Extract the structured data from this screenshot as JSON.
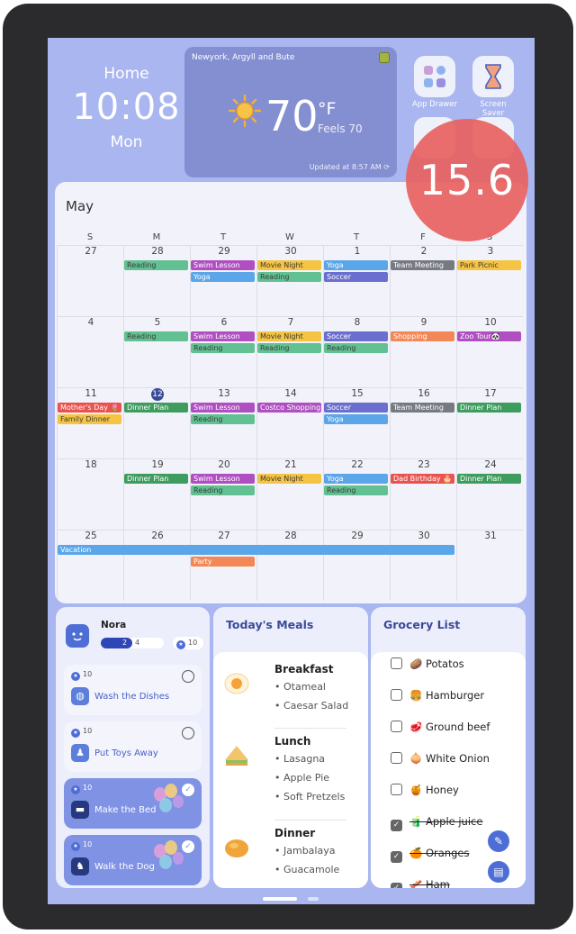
{
  "clock": {
    "label": "Home",
    "time": "10:08",
    "day": "Mon"
  },
  "weather": {
    "location": "Newyork, Argyll and Bute",
    "temperature": "70",
    "unit": "°F",
    "feels": "Feels 70",
    "updated": "Updated at 8:57 AM",
    "icon": "sun-icon"
  },
  "apps": [
    {
      "label": "App Drawer",
      "icon": "app-drawer-icon"
    },
    {
      "label": "Screen Saver",
      "icon": "hourglass-icon"
    }
  ],
  "overlay_badge": "15.6",
  "calendar": {
    "month": "May",
    "weekdays": [
      "S",
      "M",
      "T",
      "W",
      "T",
      "F",
      "S"
    ],
    "weeks": [
      [
        "27",
        "28",
        "29",
        "30",
        "1",
        "2",
        "3"
      ],
      [
        "4",
        "5",
        "6",
        "7",
        "8",
        "9",
        "10"
      ],
      [
        "11",
        "12",
        "13",
        "14",
        "15",
        "16",
        "17"
      ],
      [
        "18",
        "19",
        "20",
        "21",
        "22",
        "23",
        "24"
      ],
      [
        "25",
        "26",
        "27",
        "28",
        "29",
        "30",
        "31"
      ]
    ],
    "today": {
      "week": 2,
      "day": 1
    },
    "events": [
      {
        "title": "Reading",
        "week": 0,
        "day": 1,
        "span": 1,
        "row": 0,
        "color": "#62c192"
      },
      {
        "title": "Swim Lesson",
        "week": 0,
        "day": 2,
        "span": 1,
        "row": 0,
        "color": "#b04fc2"
      },
      {
        "title": "Yoga",
        "week": 0,
        "day": 2,
        "span": 1,
        "row": 1,
        "color": "#5aa6e8"
      },
      {
        "title": "Movie Night",
        "week": 0,
        "day": 3,
        "span": 1,
        "row": 0,
        "color": "#f6c443"
      },
      {
        "title": "Reading",
        "week": 0,
        "day": 3,
        "span": 1,
        "row": 1,
        "color": "#62c192"
      },
      {
        "title": "Yoga",
        "week": 0,
        "day": 4,
        "span": 1,
        "row": 0,
        "color": "#5aa6e8"
      },
      {
        "title": "Soccer",
        "week": 0,
        "day": 4,
        "span": 1,
        "row": 1,
        "color": "#6a6fcf"
      },
      {
        "title": "Team Meeting",
        "week": 0,
        "day": 5,
        "span": 1,
        "row": 0,
        "color": "#777a82"
      },
      {
        "title": "Park Picnic",
        "week": 0,
        "day": 6,
        "span": 1,
        "row": 0,
        "color": "#f6c443"
      },
      {
        "title": "Reading",
        "week": 1,
        "day": 1,
        "span": 1,
        "row": 0,
        "color": "#62c192"
      },
      {
        "title": "Swim Lesson",
        "week": 1,
        "day": 2,
        "span": 1,
        "row": 0,
        "color": "#b04fc2"
      },
      {
        "title": "Reading",
        "week": 1,
        "day": 2,
        "span": 1,
        "row": 1,
        "color": "#62c192"
      },
      {
        "title": "Movie Night",
        "week": 1,
        "day": 3,
        "span": 1,
        "row": 0,
        "color": "#f6c443"
      },
      {
        "title": "Reading",
        "week": 1,
        "day": 3,
        "span": 1,
        "row": 1,
        "color": "#62c192"
      },
      {
        "title": "Soccer",
        "week": 1,
        "day": 4,
        "span": 1,
        "row": 0,
        "color": "#6a6fcf"
      },
      {
        "title": "Reading",
        "week": 1,
        "day": 4,
        "span": 1,
        "row": 1,
        "color": "#62c192"
      },
      {
        "title": "Shopping",
        "week": 1,
        "day": 5,
        "span": 1,
        "row": 0,
        "color": "#f38755"
      },
      {
        "title": "Zoo Tour🐼",
        "week": 1,
        "day": 6,
        "span": 1,
        "row": 0,
        "color": "#b04fc2"
      },
      {
        "title": "Mother's Day 🌷",
        "week": 2,
        "day": 0,
        "span": 1,
        "row": 0,
        "color": "#e8534f"
      },
      {
        "title": "Family Dinner",
        "week": 2,
        "day": 0,
        "span": 1,
        "row": 1,
        "color": "#f6c443"
      },
      {
        "title": "Dinner Plan",
        "week": 2,
        "day": 1,
        "span": 1,
        "row": 0,
        "color": "#3f9c5f"
      },
      {
        "title": "Swim Lesson",
        "week": 2,
        "day": 2,
        "span": 1,
        "row": 0,
        "color": "#b04fc2"
      },
      {
        "title": "Reading",
        "week": 2,
        "day": 2,
        "span": 1,
        "row": 1,
        "color": "#62c192"
      },
      {
        "title": "Costco Shopping",
        "week": 2,
        "day": 3,
        "span": 1,
        "row": 0,
        "color": "#b04fc2"
      },
      {
        "title": "Soccer",
        "week": 2,
        "day": 4,
        "span": 1,
        "row": 0,
        "color": "#6a6fcf"
      },
      {
        "title": "Yoga",
        "week": 2,
        "day": 4,
        "span": 1,
        "row": 1,
        "color": "#5aa6e8"
      },
      {
        "title": "Team Meeting",
        "week": 2,
        "day": 5,
        "span": 1,
        "row": 0,
        "color": "#777a82"
      },
      {
        "title": "Dinner Plan",
        "week": 2,
        "day": 6,
        "span": 1,
        "row": 0,
        "color": "#3f9c5f"
      },
      {
        "title": "Dinner Plan",
        "week": 3,
        "day": 1,
        "span": 1,
        "row": 0,
        "color": "#3f9c5f"
      },
      {
        "title": "Swim Lesson",
        "week": 3,
        "day": 2,
        "span": 1,
        "row": 0,
        "color": "#b04fc2"
      },
      {
        "title": "Reading",
        "week": 3,
        "day": 2,
        "span": 1,
        "row": 1,
        "color": "#62c192"
      },
      {
        "title": "Movie Night",
        "week": 3,
        "day": 3,
        "span": 1,
        "row": 0,
        "color": "#f6c443"
      },
      {
        "title": "Yoga",
        "week": 3,
        "day": 4,
        "span": 1,
        "row": 0,
        "color": "#5aa6e8"
      },
      {
        "title": "Reading",
        "week": 3,
        "day": 4,
        "span": 1,
        "row": 1,
        "color": "#62c192"
      },
      {
        "title": "Dad Birthday 🎂",
        "week": 3,
        "day": 5,
        "span": 1,
        "row": 0,
        "color": "#e8534f"
      },
      {
        "title": "Dinner Plan",
        "week": 3,
        "day": 6,
        "span": 1,
        "row": 0,
        "color": "#3f9c5f"
      },
      {
        "title": "Vacation",
        "week": 4,
        "day": 0,
        "span": 6,
        "row": 0,
        "color": "#5aa6e8"
      },
      {
        "title": "Party",
        "week": 4,
        "day": 2,
        "span": 1,
        "row": 1,
        "color": "#f38755"
      }
    ]
  },
  "chores": {
    "user": "Nora",
    "progress_text": "2",
    "progress_total": "4",
    "progress_fraction": 0.5,
    "points": "10",
    "items": [
      {
        "points": "10",
        "label": "Wash the Dishes",
        "done": false,
        "icon": "dishes-icon"
      },
      {
        "points": "10",
        "label": "Put Toys Away",
        "done": false,
        "icon": "toy-icon"
      },
      {
        "points": "10",
        "label": "Make the Bed",
        "done": true,
        "icon": "bed-icon"
      },
      {
        "points": "10",
        "label": "Walk the Dog",
        "done": true,
        "icon": "dog-icon"
      }
    ]
  },
  "meals": {
    "title": "Today's Meals",
    "items": [
      {
        "name": "Breakfast",
        "icon": "egg-icon",
        "dishes": [
          "Otameal",
          "Caesar Salad"
        ]
      },
      {
        "name": "Lunch",
        "icon": "sandwich-icon",
        "dishes": [
          "Lasagna",
          "Apple Pie",
          "Soft Pretzels"
        ]
      },
      {
        "name": "Dinner",
        "icon": "curry-icon",
        "dishes": [
          "Jambalaya",
          "Guacamole"
        ]
      }
    ]
  },
  "grocery": {
    "title": "Grocery List",
    "items": [
      {
        "label": "🥔 Potatos",
        "done": false
      },
      {
        "label": "🍔 Hamburger",
        "done": false
      },
      {
        "label": "🥩 Ground beef",
        "done": false
      },
      {
        "label": "🧅 White Onion",
        "done": false
      },
      {
        "label": "🍯 Honey",
        "done": false
      },
      {
        "label": "🧃 Apple juice",
        "done": true
      },
      {
        "label": "🍊 Oranges",
        "done": true
      },
      {
        "label": "🥓 Ham",
        "done": true
      }
    ]
  }
}
